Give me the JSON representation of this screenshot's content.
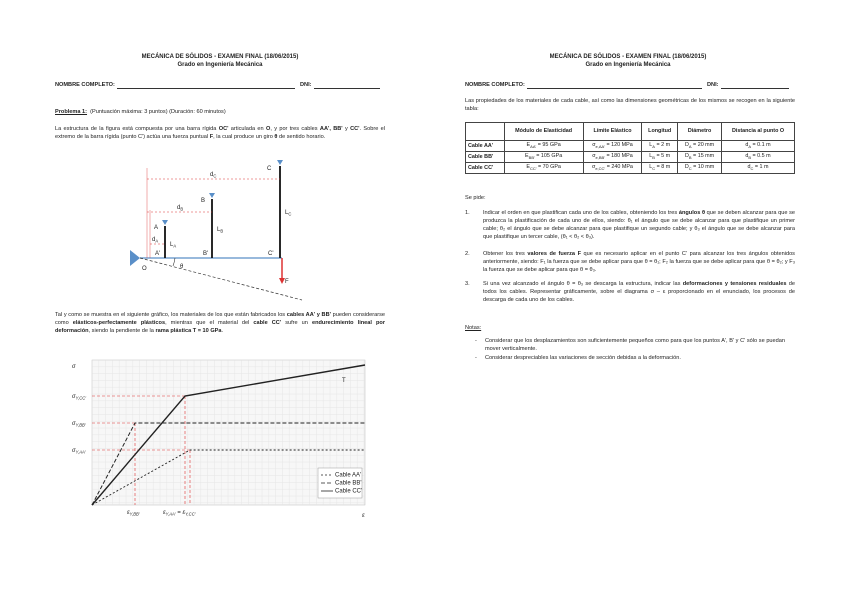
{
  "left": {
    "header": {
      "title": "MECÁNICA DE SÓLIDOS - EXAMEN FINAL (18/06/2015)",
      "subtitle": "Grado en Ingeniería Mecánica",
      "name_label": "NOMBRE COMPLETO:",
      "dni_label": "DNI:"
    },
    "problem": {
      "heading": "Problema 1:",
      "info": "(Puntuación máxima: 3 puntos) (Duración: 60 minutos)"
    },
    "intro": [
      "La estructura de la figura está compuesta por una barra rígida ",
      "OC'",
      " articulada en ",
      "O",
      ", y por tres cables ",
      "AA', BB'",
      " y ",
      "CC'",
      ". Sobre el extremo de la barra rígida (punto C') actúa una fuerza puntual ",
      "F",
      ", la cual produce un giro ",
      "θ",
      " de sentido horario."
    ],
    "figure": {
      "point_o": "O",
      "point_a": "A",
      "point_a2": "A'",
      "point_b": "B",
      "point_b2": "B'",
      "point_c": "C",
      "point_c2": "C'",
      "length_a": [
        "L",
        "A"
      ],
      "length_b": [
        "L",
        "B"
      ],
      "length_c": [
        "L",
        "C"
      ],
      "dist_a": [
        "d",
        "A"
      ],
      "dist_b": [
        "d",
        "B"
      ],
      "dist_c": [
        "d",
        "C"
      ],
      "angle": "θ",
      "force": "F"
    },
    "graph_intro": [
      "Tal y como se muestra en el siguiente gráfico, los materiales de los que están fabricados los ",
      "cables AA' y BB'",
      " pueden considerarse como ",
      "elásticos-perfectamente plásticos",
      ", mientras que el material del ",
      "cable CC'",
      " sufre un ",
      "endurecimiento lineal por deformación",
      ", siendo la pendiente de la ",
      "rama plástica T = 10 GPa",
      "."
    ],
    "graph": {
      "y_label": "σ",
      "x_label": "ε",
      "slope_label": "T",
      "sy_cc": [
        "σ",
        "Y,CC'"
      ],
      "sy_bb": [
        "σ",
        "Y,BB'"
      ],
      "sy_aa": [
        "σ",
        "Y,AA'"
      ],
      "ey_bb": [
        "ε",
        "Y,BB'"
      ],
      "ey_aa_cc": [
        "ε",
        "Y,AA'",
        " = ε",
        "Y,CC'"
      ],
      "legend": [
        "Cable AA'",
        "Cable BB'",
        "Cable CC'"
      ]
    }
  },
  "right": {
    "header": {
      "title": "MECÁNICA DE SÓLIDOS - EXAMEN FINAL (18/06/2015)",
      "subtitle": "Grado en Ingeniería Mecánica",
      "name_label": "NOMBRE COMPLETO:",
      "dni_label": "DNI:"
    },
    "table_intro": "Las propiedades de los materiales de cada cable, así como las dimensiones geométricas de los mismos se recogen en la siguiente tabla:",
    "table": {
      "header": [
        "Módulo de Elasticidad",
        "Límite Elástico",
        "Longitud",
        "Diámetro",
        "Distancia al punto O"
      ],
      "rows": [
        [
          "Cable AA'",
          [
            "E",
            "AA'",
            " = 95 GPa"
          ],
          [
            "σ",
            "e,AA'",
            " = 120 MPa"
          ],
          [
            "L",
            "A",
            " = 2 m"
          ],
          [
            "D",
            "A",
            " = 20 mm"
          ],
          [
            "d",
            "A",
            " = 0.1 m"
          ]
        ],
        [
          "Cable BB'",
          [
            "E",
            "BB'",
            " = 105 GPa"
          ],
          [
            "σ",
            "e,BB'",
            " = 180 MPa"
          ],
          [
            "L",
            "B",
            " = 5 m"
          ],
          [
            "D",
            "B",
            " = 15 mm"
          ],
          [
            "d",
            "B",
            " = 0.5 m"
          ]
        ],
        [
          "Cable CC'",
          [
            "E",
            "CC'",
            " = 70 GPa"
          ],
          [
            "σ",
            "e,CC'",
            " = 240 MPa"
          ],
          [
            "L",
            "C",
            " = 8 m"
          ],
          [
            "D",
            "C",
            " = 10 mm"
          ],
          [
            "d",
            "C",
            " = 1 m"
          ]
        ]
      ]
    },
    "tasks_heading": "Se pide:",
    "tasks": [
      {
        "number": "1.",
        "text": [
          "Indicar el orden en que plastifican cada uno de los cables, obteniendo los tres ",
          "ángulos θ",
          " que se deben alcanzar para que se produzca la plastificación de cada uno de ellos, siendo: θ₁ el ángulo que se debe alcanzar para que plastifique un primer cable; θ₂ el ángulo que se debe alcanzar para que plastifique un segundo cable; y θ₃ el ángulo que se debe alcanzar para que plastifique un tercer cable, (θ₁ < θ₂ < θ₃)."
        ]
      },
      {
        "number": "2.",
        "text": [
          "Obtener los tres ",
          "valores de fuerza F",
          " que es necesario aplicar en el punto C' para alcanzar los tres ángulos obtenidos anteriormente, siendo: F₁ la fuerza que se debe aplicar para que θ = θ₁; F₂ la fuerza que se debe aplicar para que θ = θ₂; y F₃ la fuerza que se debe aplicar para que θ = θ₃."
        ]
      },
      {
        "number": "3.",
        "text": [
          "Si una vez alcanzado el ángulo θ = θ₃ se descarga la estructura, indicar las ",
          "deformaciones y tensiones residuales",
          " de todos los cables. Representar gráficamente, sobre el diagrama σ – ε proporcionado en el enunciado, los procesos de descarga de cada uno de los cables."
        ]
      }
    ],
    "notes_heading": "Notas:",
    "notes": [
      "Considerar que los desplazamientos son suficientemente pequeños como para que los puntos A', B' y C' sólo se puedan mover verticalmente.",
      "Considerar despreciables las variaciones de sección debidas a la deformación."
    ]
  }
}
